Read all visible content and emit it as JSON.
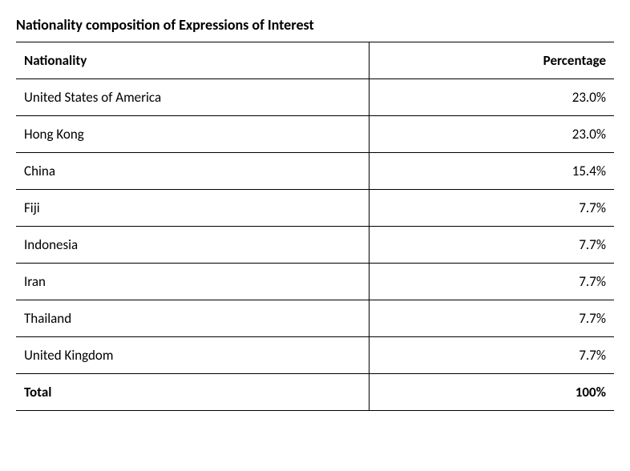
{
  "title": "Nationality composition of Expressions of Interest",
  "table": {
    "columns": [
      "Nationality",
      "Percentage"
    ],
    "rows": [
      {
        "nationality": "United States of America",
        "percentage": "23.0%"
      },
      {
        "nationality": "Hong Kong",
        "percentage": "23.0%"
      },
      {
        "nationality": "China",
        "percentage": "15.4%"
      },
      {
        "nationality": "Fiji",
        "percentage": "7.7%"
      },
      {
        "nationality": "Indonesia",
        "percentage": "7.7%"
      },
      {
        "nationality": "Iran",
        "percentage": "7.7%"
      },
      {
        "nationality": "Thailand",
        "percentage": "7.7%"
      },
      {
        "nationality": "United Kingdom",
        "percentage": "7.7%"
      }
    ],
    "total": {
      "label": "Total",
      "percentage": "100%"
    }
  },
  "colors": {
    "text": "#000000",
    "background": "#ffffff",
    "border": "#000000"
  },
  "typography": {
    "title_fontsize_pt": 14,
    "body_fontsize_pt": 13,
    "font_family": "Calibri"
  }
}
